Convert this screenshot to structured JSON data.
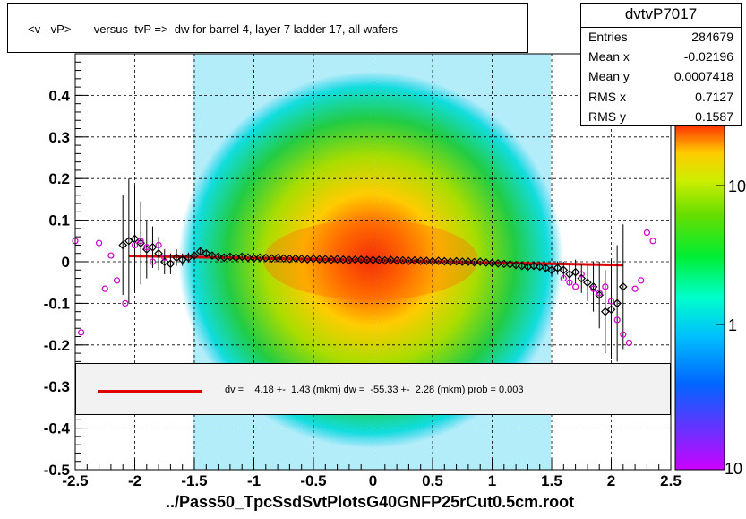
{
  "title": "<v - vP>       versus  tvP =>  dw for barrel 4, layer 7 ladder 17, all wafers",
  "stats": {
    "name": "dvtvP7017",
    "rows": [
      {
        "key": "Entries",
        "value": "284679"
      },
      {
        "key": "Mean x",
        "value": "-0.02196"
      },
      {
        "key": "Mean y",
        "value": "0.0007418"
      },
      {
        "key": "RMS x",
        "value": "0.7127"
      },
      {
        "key": "RMS y",
        "value": "0.1587"
      }
    ]
  },
  "legend": {
    "text": "dv =    4.18 +-  1.43 (mkm) dw =  -55.33 +-  2.28 (mkm) prob = 0.003",
    "color": "#e00000"
  },
  "xlabel": "../Pass50_TpcSsdSvtPlotsG40GNFP25rCut0.5cm.root",
  "colors": {
    "fit_line": "#e00000",
    "profile_markers": "#000000",
    "secondary_markers": "#cc00cc",
    "frame": "#000000"
  },
  "chart_data": {
    "type": "heatmap",
    "xlim": [
      -2.5,
      2.5
    ],
    "ylim": [
      -0.5,
      0.5
    ],
    "x_ticks": [
      "-2.5",
      "-2",
      "-1.5",
      "-1",
      "-0.5",
      "0",
      "0.5",
      "1",
      "1.5",
      "2",
      "2.5"
    ],
    "x_tick_values": [
      -2.5,
      -2,
      -1.5,
      -1,
      -0.5,
      0,
      0.5,
      1,
      1.5,
      2,
      2.5
    ],
    "y_ticks": [
      "-0.5",
      "-0.4",
      "-0.3",
      "-0.2",
      "-0.1",
      "0",
      "0.1",
      "0.2",
      "0.3",
      "0.4"
    ],
    "y_tick_values": [
      -0.5,
      -0.4,
      -0.3,
      -0.2,
      -0.1,
      0,
      0.1,
      0.2,
      0.3,
      0.4
    ],
    "grid": true,
    "colorbar": {
      "scale": "log",
      "ticks": [
        "1",
        "10"
      ],
      "tick_values": [
        1,
        10
      ],
      "top_label": "10"
    },
    "fit": {
      "x": [
        -2.05,
        2.1
      ],
      "y": [
        0.014,
        -0.008
      ]
    },
    "profile": {
      "x": [
        -2.1,
        -2.05,
        -2.0,
        -1.95,
        -1.9,
        -1.85,
        -1.8,
        -1.75,
        -1.7,
        -1.65,
        -1.6,
        -1.55,
        -1.5,
        -1.45,
        -1.4,
        -1.35,
        -1.3,
        -1.25,
        -1.2,
        -1.15,
        -1.1,
        -1.05,
        -1.0,
        -0.95,
        -0.9,
        -0.85,
        -0.8,
        -0.75,
        -0.7,
        -0.65,
        -0.6,
        -0.55,
        -0.5,
        -0.45,
        -0.4,
        -0.35,
        -0.3,
        -0.25,
        -0.2,
        -0.15,
        -0.1,
        -0.05,
        0.0,
        0.05,
        0.1,
        0.15,
        0.2,
        0.25,
        0.3,
        0.35,
        0.4,
        0.45,
        0.5,
        0.55,
        0.6,
        0.65,
        0.7,
        0.75,
        0.8,
        0.85,
        0.9,
        0.95,
        1.0,
        1.05,
        1.1,
        1.15,
        1.2,
        1.25,
        1.3,
        1.35,
        1.4,
        1.45,
        1.5,
        1.55,
        1.6,
        1.65,
        1.7,
        1.75,
        1.8,
        1.85,
        1.9,
        1.95,
        2.0,
        2.05,
        2.1
      ],
      "y": [
        0.04,
        0.05,
        0.055,
        0.045,
        0.03,
        0.035,
        0.02,
        0.0,
        -0.005,
        0.01,
        0.005,
        0.01,
        0.015,
        0.025,
        0.02,
        0.015,
        0.012,
        0.01,
        0.012,
        0.01,
        0.012,
        0.01,
        0.008,
        0.01,
        0.009,
        0.008,
        0.009,
        0.008,
        0.007,
        0.008,
        0.007,
        0.006,
        0.007,
        0.006,
        0.006,
        0.005,
        0.006,
        0.005,
        0.004,
        0.005,
        0.005,
        0.004,
        0.004,
        0.004,
        0.003,
        0.004,
        0.003,
        0.003,
        0.002,
        0.003,
        0.002,
        0.002,
        0.001,
        0.002,
        0.001,
        0.0,
        0.001,
        0.0,
        0.0,
        -0.001,
        0.0,
        -0.002,
        -0.003,
        -0.004,
        -0.005,
        -0.006,
        -0.008,
        -0.01,
        -0.012,
        -0.01,
        -0.012,
        -0.015,
        -0.02,
        -0.015,
        -0.02,
        -0.03,
        -0.025,
        -0.04,
        -0.05,
        -0.06,
        -0.08,
        -0.12,
        -0.115,
        -0.1,
        -0.06
      ],
      "err": [
        0.12,
        0.15,
        0.13,
        0.1,
        0.07,
        0.05,
        0.04,
        0.03,
        0.025,
        0.02,
        0.015,
        0.012,
        0.01,
        0.008,
        0.006,
        0.005,
        0.004,
        0.004,
        0.004,
        0.003,
        0.003,
        0.003,
        0.003,
        0.003,
        0.003,
        0.003,
        0.003,
        0.003,
        0.003,
        0.003,
        0.003,
        0.003,
        0.003,
        0.003,
        0.003,
        0.003,
        0.003,
        0.003,
        0.003,
        0.003,
        0.003,
        0.003,
        0.003,
        0.003,
        0.003,
        0.003,
        0.003,
        0.003,
        0.003,
        0.003,
        0.003,
        0.003,
        0.003,
        0.003,
        0.003,
        0.003,
        0.003,
        0.003,
        0.003,
        0.003,
        0.003,
        0.003,
        0.003,
        0.004,
        0.004,
        0.004,
        0.005,
        0.005,
        0.006,
        0.007,
        0.009,
        0.011,
        0.013,
        0.016,
        0.02,
        0.025,
        0.03,
        0.035,
        0.045,
        0.06,
        0.08,
        0.1,
        0.12,
        0.14,
        0.15
      ]
    },
    "secondary": {
      "x": [
        -2.5,
        -2.45,
        -2.3,
        -2.25,
        -2.2,
        -2.15,
        -2.08,
        -2.0,
        -1.95,
        -1.9,
        -1.85,
        -1.8,
        -1.75,
        1.6,
        1.65,
        1.7,
        1.75,
        1.85,
        1.9,
        1.95,
        2.0,
        2.05,
        2.1,
        2.15,
        2.2,
        2.25,
        2.3,
        2.35
      ],
      "y": [
        0.05,
        -0.17,
        0.045,
        -0.065,
        0.015,
        -0.045,
        -0.1,
        0.04,
        0.05,
        0.035,
        0.0,
        0.04,
        0.01,
        -0.04,
        -0.05,
        -0.06,
        -0.03,
        -0.065,
        -0.075,
        -0.06,
        -0.095,
        -0.14,
        -0.175,
        -0.195,
        -0.065,
        -0.045,
        0.07,
        0.05
      ]
    }
  }
}
